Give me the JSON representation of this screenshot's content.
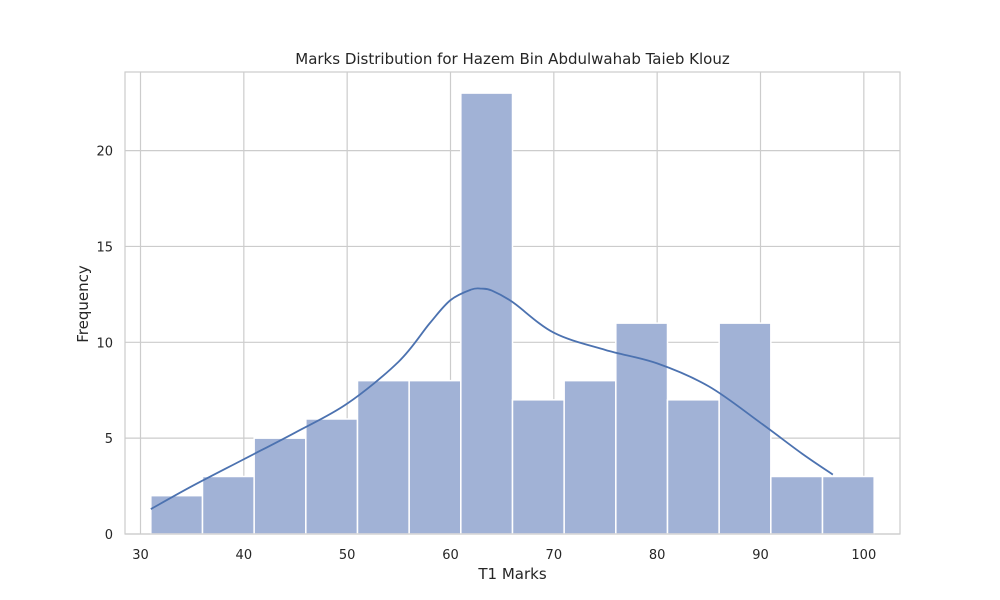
{
  "colors": {
    "bar_fill": "#a1b2d6",
    "bar_stroke": "#ffffff",
    "kde_line": "#4c72b0",
    "grid": "#cccccc",
    "frame": "#cccccc",
    "text": "#262626"
  },
  "chart_data": {
    "type": "bar",
    "title": "Marks Distribution for Hazem Bin Abdulwahab Taieb Klouz",
    "xlabel": "T1 Marks",
    "ylabel": "Frequency",
    "xlim": [
      28.5,
      103.5
    ],
    "ylim": [
      0,
      24.1
    ],
    "xticks": [
      30,
      40,
      50,
      60,
      70,
      80,
      90,
      100
    ],
    "yticks": [
      0,
      5,
      10,
      15,
      20
    ],
    "grid": true,
    "bins": [
      {
        "start": 31,
        "end": 36,
        "count": 2
      },
      {
        "start": 36,
        "end": 41,
        "count": 3
      },
      {
        "start": 41,
        "end": 46,
        "count": 5
      },
      {
        "start": 46,
        "end": 51,
        "count": 6
      },
      {
        "start": 51,
        "end": 56,
        "count": 8
      },
      {
        "start": 56,
        "end": 61,
        "count": 8
      },
      {
        "start": 61,
        "end": 66,
        "count": 23
      },
      {
        "start": 66,
        "end": 71,
        "count": 7
      },
      {
        "start": 71,
        "end": 76,
        "count": 8
      },
      {
        "start": 76,
        "end": 81,
        "count": 11
      },
      {
        "start": 81,
        "end": 86,
        "count": 7
      },
      {
        "start": 86,
        "end": 91,
        "count": 11
      },
      {
        "start": 91,
        "end": 96,
        "count": 3
      },
      {
        "start": 96,
        "end": 101,
        "count": 3
      }
    ],
    "kde": {
      "x": [
        31,
        35,
        40,
        45,
        50,
        55,
        58,
        60,
        62,
        63,
        64,
        66,
        70,
        75,
        80,
        85,
        90,
        94,
        97
      ],
      "y": [
        1.3,
        2.5,
        3.9,
        5.3,
        6.8,
        9.0,
        11.0,
        12.2,
        12.75,
        12.8,
        12.7,
        12.1,
        10.5,
        9.6,
        8.9,
        7.7,
        5.8,
        4.2,
        3.1
      ]
    }
  }
}
